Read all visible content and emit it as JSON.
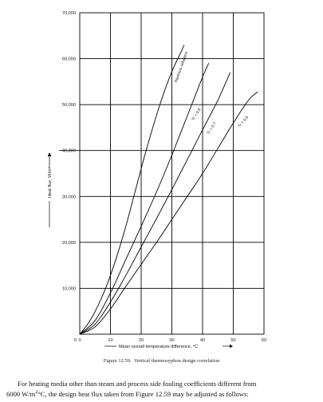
{
  "chart_data": {
    "type": "line",
    "xlabel": "Mean overall temperature difference, °C",
    "ylabel": "Heat flux, W/m²",
    "xlim": [
      0,
      60
    ],
    "ylim": [
      0,
      70000
    ],
    "x_ticks": [
      "0",
      "10",
      "20",
      "30",
      "40",
      "50",
      "60"
    ],
    "y_ticks": [
      "10,000",
      "20,000",
      "30,000",
      "40,000",
      "50,000",
      "60,000",
      "70,000"
    ],
    "grid": true,
    "series": [
      {
        "name": "Aqueous solutions",
        "label_angle": -70,
        "x": [
          0,
          3,
          6,
          9,
          12,
          15,
          18,
          21,
          24,
          27,
          30,
          33,
          34
        ],
        "y": [
          0,
          2600,
          6300,
          11000,
          16800,
          23500,
          31000,
          38500,
          45500,
          51800,
          57200,
          61500,
          63000
        ]
      },
      {
        "name": "Tr = 0.8",
        "label_angle": -58,
        "x": [
          0,
          5,
          10,
          15,
          20,
          25,
          30,
          35,
          40,
          42
        ],
        "y": [
          0,
          3000,
          9000,
          16300,
          23500,
          31000,
          39000,
          47500,
          56000,
          59000
        ]
      },
      {
        "name": "Tr = 0.7",
        "label_angle": -58,
        "x": [
          0,
          5,
          10,
          15,
          20,
          25,
          30,
          35,
          40,
          45,
          49
        ],
        "y": [
          0,
          2200,
          7000,
          12800,
          19000,
          25200,
          31500,
          38000,
          44500,
          51000,
          57000
        ]
      },
      {
        "name": "Tr = 0.6",
        "label_angle": -50,
        "x": [
          0,
          5,
          10,
          15,
          20,
          25,
          30,
          35,
          40,
          45,
          50,
          55,
          58
        ],
        "y": [
          0,
          1600,
          5500,
          10400,
          15200,
          20000,
          25000,
          30000,
          35000,
          40500,
          46000,
          51000,
          52800
        ]
      }
    ]
  },
  "caption": "Figure 12.59. Vertical thermosyphon design correlation",
  "body": {
    "line1": "For heating media other than steam and process side fouling coefficients different from",
    "line2_prefix": "6000 W/m",
    "line2_sup": "2",
    "line2_suffix": "°C, the design heat flux taken from Figure 12.59 may be adjusted as follows:"
  }
}
